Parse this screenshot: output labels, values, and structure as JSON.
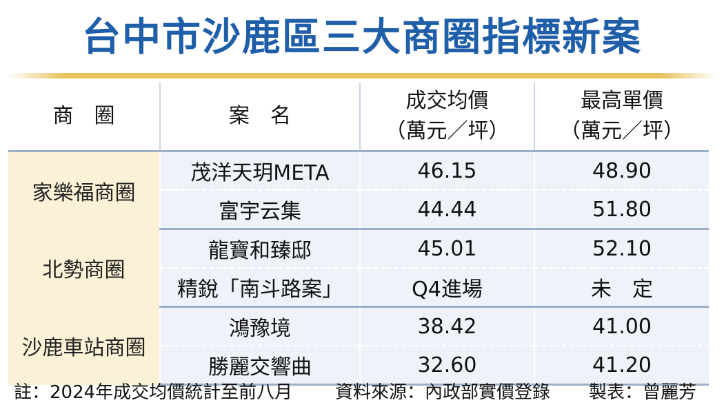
{
  "title": "台中市沙鹿區三大商圈指標新案",
  "headers": {
    "district": "商　圈",
    "project": "案　名",
    "avg_price_line1": "成交均價",
    "avg_price_line2": "（萬元／坪）",
    "max_price_line1": "最高單價",
    "max_price_line2": "（萬元／坪）"
  },
  "groups": [
    {
      "district": "家樂福商圈",
      "rows": [
        {
          "project": "茂洋天玥META",
          "avg": "46.15",
          "max": "48.90"
        },
        {
          "project": "富宇云集",
          "avg": "44.44",
          "max": "51.80"
        }
      ]
    },
    {
      "district": "北勢商圈",
      "rows": [
        {
          "project": "龍寶和臻邸",
          "avg": "45.01",
          "max": "52.10"
        },
        {
          "project": "精銳「南斗路案」",
          "avg": "Q4進場",
          "max": "未　定"
        }
      ]
    },
    {
      "district": "沙鹿車站商圈",
      "rows": [
        {
          "project": "鴻豫境",
          "avg": "38.42",
          "max": "41.00"
        },
        {
          "project": "勝麗交響曲",
          "avg": "32.60",
          "max": "41.20"
        }
      ]
    }
  ],
  "footer": {
    "note": "註：2024年成交均價統計至前八月",
    "source": "資料來源：內政部實價登錄",
    "author": "製表：曾麗芳"
  },
  "colors": {
    "title": "#1f5ea8",
    "rule": "#e7c25c",
    "group_bg": "#fbf1d6",
    "cell_bg": "#eef3f9"
  }
}
